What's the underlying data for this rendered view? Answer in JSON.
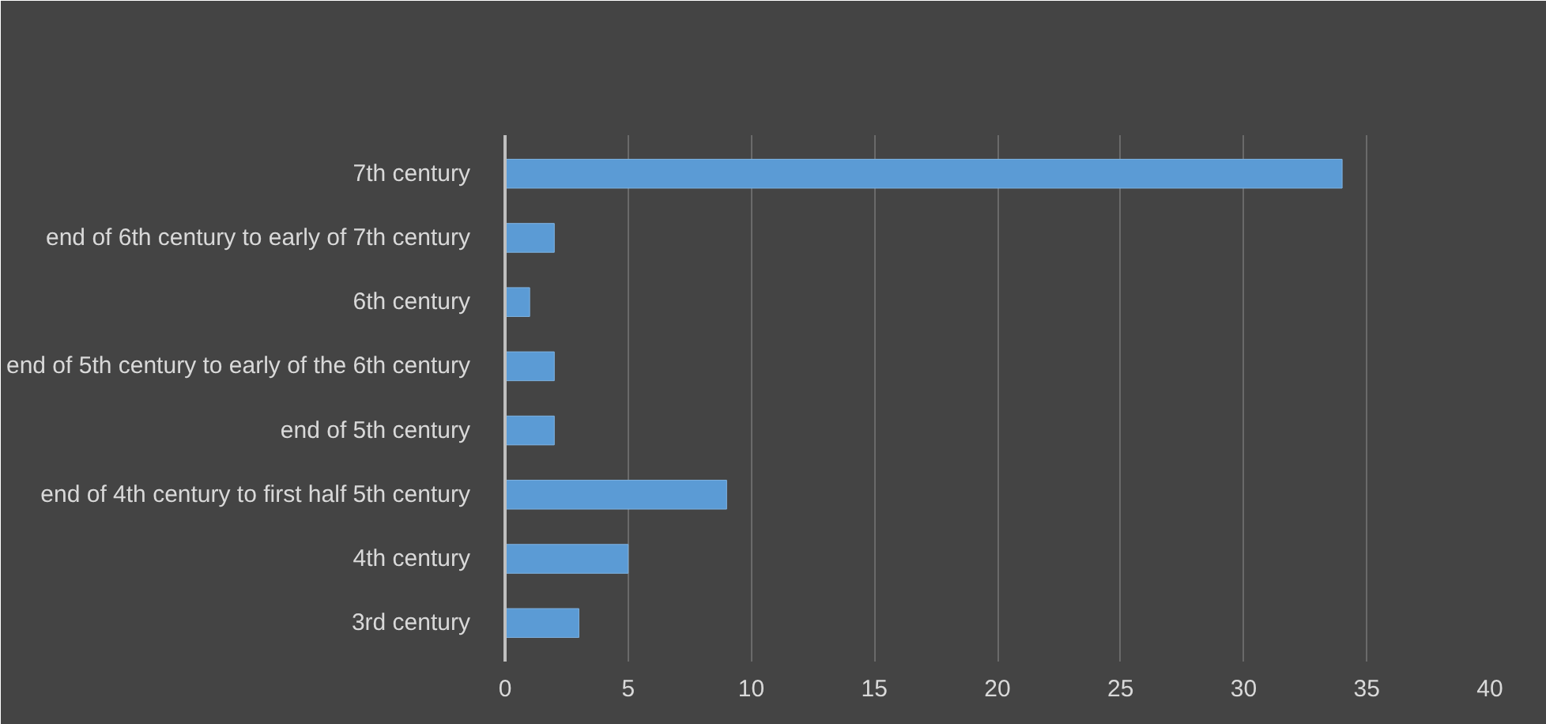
{
  "chart_data": {
    "type": "bar",
    "orientation": "horizontal",
    "categories": [
      "7th century",
      "end of 6th century to early of 7th century",
      "6th century",
      "end of 5th century to early of the 6th century",
      "end of 5th century",
      "end of 4th century to first half 5th century",
      "4th century",
      "3rd century"
    ],
    "values": [
      34,
      2,
      1,
      2,
      2,
      9,
      5,
      3
    ],
    "color": "#5b9bd5",
    "xlim": [
      0,
      40
    ],
    "xticks": [
      0,
      5,
      10,
      15,
      20,
      25,
      30,
      35,
      40
    ],
    "grid": "x"
  }
}
